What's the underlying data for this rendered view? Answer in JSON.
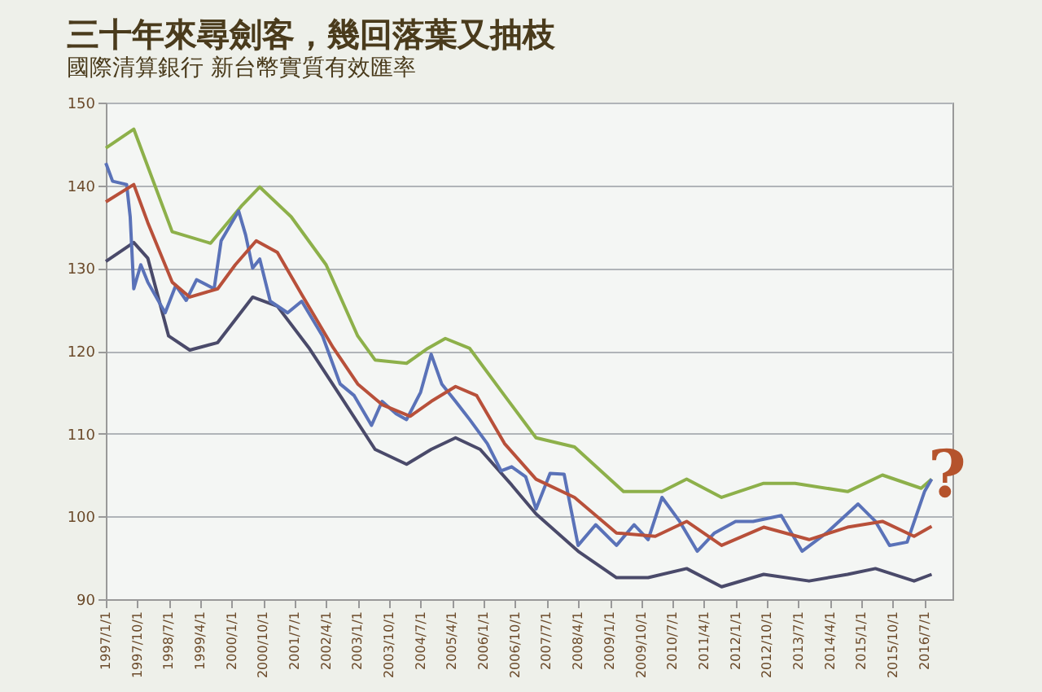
{
  "chart_data": {
    "type": "line",
    "title": "三十年來尋劍客，幾回落葉又抽枝",
    "subtitle": "國際清算銀行 新台幣實質有效匯率",
    "xlim": [
      "1997-01",
      "2017-03"
    ],
    "xticks": [
      {
        "value": "1997-01",
        "label": "1997/1/1"
      },
      {
        "value": "1997-10",
        "label": "1997/10/1"
      },
      {
        "value": "1998-07",
        "label": "1998/7/1"
      },
      {
        "value": "1999-04",
        "label": "1999/4/1"
      },
      {
        "value": "2000-01",
        "label": "2000/1/1"
      },
      {
        "value": "2000-10",
        "label": "2000/10/1"
      },
      {
        "value": "2001-07",
        "label": "2001/7/1"
      },
      {
        "value": "2002-04",
        "label": "2002/4/1"
      },
      {
        "value": "2003-01",
        "label": "2003/1/1"
      },
      {
        "value": "2003-10",
        "label": "2003/10/1"
      },
      {
        "value": "2004-07",
        "label": "2004/7/1"
      },
      {
        "value": "2005-04",
        "label": "2005/4/1"
      },
      {
        "value": "2006-01",
        "label": "2006/1/1"
      },
      {
        "value": "2006-10",
        "label": "2006/10/1"
      },
      {
        "value": "2007-07",
        "label": "2007/7/1"
      },
      {
        "value": "2008-04",
        "label": "2008/4/1"
      },
      {
        "value": "2009-01",
        "label": "2009/1/1"
      },
      {
        "value": "2009-10",
        "label": "2009/10/1"
      },
      {
        "value": "2010-07",
        "label": "2010/7/1"
      },
      {
        "value": "2011-04",
        "label": "2011/4/1"
      },
      {
        "value": "2012-01",
        "label": "2012/1/1"
      },
      {
        "value": "2012-10",
        "label": "2012/10/1"
      },
      {
        "value": "2013-07",
        "label": "2013/7/1"
      },
      {
        "value": "2014-04",
        "label": "2014/4/1"
      },
      {
        "value": "2015-01",
        "label": "2015/1/1"
      },
      {
        "value": "2015-10",
        "label": "2015/10/1"
      },
      {
        "value": "2016-07",
        "label": "2016/7/1"
      }
    ],
    "ylim": [
      90,
      150
    ],
    "yticks": [
      90,
      100,
      110,
      120,
      130,
      140,
      150
    ],
    "grid": "y",
    "legend": false,
    "marker": "none",
    "line_style": "solid",
    "annotations": [
      "?"
    ],
    "series": [
      {
        "color": "#8db04a",
        "x": [
          "1997-01",
          "1997-09",
          "1998-08",
          "1999-07",
          "2000-04",
          "2000-09",
          "2001-06",
          "2002-04",
          "2003-01",
          "2003-06",
          "2004-03",
          "2004-09",
          "2005-02",
          "2005-09",
          "2006-07",
          "2007-04",
          "2008-03",
          "2009-05",
          "2010-04",
          "2010-11",
          "2011-09",
          "2012-09",
          "2013-06",
          "2014-09",
          "2015-07",
          "2016-06",
          "2016-09"
        ],
        "values": [
          144.5,
          146.8,
          134.4,
          133,
          137.6,
          139.8,
          136.2,
          130.4,
          121.8,
          118.9,
          118.5,
          120.3,
          121.5,
          120.3,
          114.6,
          109.5,
          108.4,
          103,
          103,
          104.5,
          102.3,
          104,
          104,
          103,
          105,
          103.4,
          104.5
        ]
      },
      {
        "color": "#4a4a6a",
        "x": [
          "1997-01",
          "1997-09",
          "1998-01",
          "1998-07",
          "1999-01",
          "1999-09",
          "2000-07",
          "2001-02",
          "2001-11",
          "2002-08",
          "2003-06",
          "2004-03",
          "2004-10",
          "2005-05",
          "2005-12",
          "2006-09",
          "2007-04",
          "2008-04",
          "2009-03",
          "2009-12",
          "2010-11",
          "2011-09",
          "2012-09",
          "2013-10",
          "2014-09",
          "2015-05",
          "2016-04",
          "2016-09"
        ],
        "values": [
          130.8,
          133.1,
          131.2,
          121.8,
          120.1,
          121,
          126.5,
          125.4,
          120.4,
          114.6,
          108.1,
          106.3,
          108.1,
          109.5,
          108.1,
          103.8,
          100.3,
          95.8,
          92.6,
          92.6,
          93.7,
          91.5,
          93,
          92.2,
          93,
          93.7,
          92.2,
          93
        ]
      },
      {
        "color": "#5a72b8",
        "x": [
          "1997-01",
          "1997-03",
          "1997-07",
          "1997-08",
          "1997-09",
          "1997-11",
          "1998-01",
          "1998-06",
          "1998-09",
          "1998-12",
          "1999-03",
          "1999-08",
          "1999-10",
          "2000-01",
          "2000-03",
          "2000-05",
          "2000-07",
          "2000-09",
          "2000-12",
          "2001-05",
          "2001-09",
          "2002-03",
          "2002-08",
          "2002-12",
          "2003-05",
          "2003-08",
          "2003-12",
          "2004-03",
          "2004-07",
          "2004-10",
          "2005-01",
          "2005-05",
          "2005-09",
          "2006-02",
          "2006-06",
          "2006-09",
          "2007-01",
          "2007-04",
          "2007-08",
          "2007-12",
          "2008-04",
          "2008-09",
          "2009-03",
          "2009-08",
          "2009-12",
          "2010-04",
          "2010-09",
          "2011-02",
          "2011-07",
          "2012-01",
          "2012-06",
          "2013-02",
          "2013-08",
          "2014-03",
          "2014-12",
          "2015-05",
          "2015-09",
          "2016-02",
          "2016-07",
          "2016-09"
        ],
        "values": [
          142.7,
          140.5,
          140.1,
          136.2,
          127.5,
          130.4,
          128.3,
          124.6,
          127.9,
          126.1,
          128.6,
          127.5,
          133.3,
          135.5,
          136.9,
          134,
          130,
          131.1,
          126,
          124.6,
          126,
          121.8,
          116,
          114.6,
          111,
          113.9,
          112.4,
          111.7,
          115,
          119.6,
          116,
          113.9,
          111.7,
          108.8,
          105.5,
          106,
          104.8,
          100.9,
          105.2,
          105.1,
          96.5,
          99,
          96.5,
          99,
          97.2,
          102.3,
          99.4,
          95.8,
          98,
          99.4,
          99.4,
          100.1,
          95.8,
          98,
          101.5,
          99.4,
          96.5,
          96.9,
          103,
          104.5
        ]
      },
      {
        "color": "#b8503a",
        "x": [
          "1997-01",
          "1997-09",
          "1998-01",
          "1998-08",
          "1999-01",
          "1999-09",
          "2000-02",
          "2000-08",
          "2001-02",
          "2001-09",
          "2002-06",
          "2003-01",
          "2003-08",
          "2004-04",
          "2004-10",
          "2005-05",
          "2005-11",
          "2006-07",
          "2007-04",
          "2008-03",
          "2009-03",
          "2010-02",
          "2010-11",
          "2011-09",
          "2012-09",
          "2013-10",
          "2014-09",
          "2015-07",
          "2016-04",
          "2016-09"
        ],
        "values": [
          138,
          140.1,
          135.5,
          128.3,
          126.5,
          127.5,
          130.4,
          133.3,
          131.9,
          126.8,
          120.4,
          116,
          113.5,
          112.1,
          113.9,
          115.7,
          114.6,
          108.8,
          104.5,
          102.3,
          98,
          97.6,
          99.4,
          96.5,
          98.7,
          97.2,
          98.7,
          99.4,
          97.6,
          98.8
        ]
      }
    ]
  }
}
